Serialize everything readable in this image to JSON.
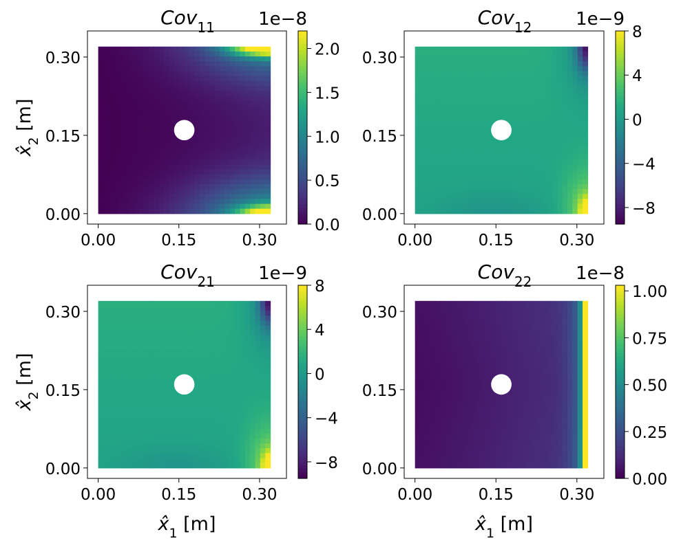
{
  "chart_data": [
    {
      "type": "heatmap",
      "title_main": "Cov",
      "title_sub": "11",
      "xlabel_hat": "x̂",
      "xlabel_sub": "1",
      "xlabel_unit": " [m]",
      "ylabel_hat": "x̂",
      "ylabel_sub": "2",
      "ylabel_unit": " [m]",
      "show_xlabel": false,
      "show_ylabel": true,
      "x_ticks": [
        "0.00",
        "0.15",
        "0.30"
      ],
      "y_ticks": [
        "0.00",
        "0.15",
        "0.30"
      ],
      "xlim": [
        -0.02,
        0.35
      ],
      "ylim": [
        -0.02,
        0.35
      ],
      "domain": {
        "x": [
          0,
          0.32
        ],
        "y": [
          0,
          0.32
        ]
      },
      "hole": {
        "center": [
          0.16,
          0.16
        ],
        "radius": 0.019
      },
      "pattern": "cov11",
      "colormap": "viridis",
      "colorbar": {
        "multiplier": "1e−8",
        "ticks": [
          "0.0",
          "0.5",
          "1.0",
          "1.5",
          "2.0"
        ],
        "tick_values": [
          0.0,
          0.5,
          1.0,
          1.5,
          2.0
        ],
        "range": [
          0.0,
          2.2
        ]
      }
    },
    {
      "type": "heatmap",
      "title_main": "Cov",
      "title_sub": "12",
      "xlabel_hat": "x̂",
      "xlabel_sub": "1",
      "xlabel_unit": " [m]",
      "ylabel_hat": "x̂",
      "ylabel_sub": "2",
      "ylabel_unit": " [m]",
      "show_xlabel": false,
      "show_ylabel": false,
      "x_ticks": [
        "0.00",
        "0.15",
        "0.30"
      ],
      "y_ticks": [
        "0.00",
        "0.15",
        "0.30"
      ],
      "xlim": [
        -0.02,
        0.35
      ],
      "ylim": [
        -0.02,
        0.35
      ],
      "domain": {
        "x": [
          0,
          0.32
        ],
        "y": [
          0,
          0.32
        ]
      },
      "hole": {
        "center": [
          0.16,
          0.16
        ],
        "radius": 0.019
      },
      "pattern": "cov12",
      "colormap": "viridis",
      "colorbar": {
        "multiplier": "1e−9",
        "ticks": [
          "−8",
          "−4",
          "0",
          "4",
          "8"
        ],
        "tick_values": [
          -8,
          -4,
          0,
          4,
          8
        ],
        "range": [
          -9.5,
          8
        ]
      }
    },
    {
      "type": "heatmap",
      "title_main": "Cov",
      "title_sub": "21",
      "xlabel_hat": "x̂",
      "xlabel_sub": "1",
      "xlabel_unit": " [m]",
      "ylabel_hat": "x̂",
      "ylabel_sub": "2",
      "ylabel_unit": " [m]",
      "show_xlabel": true,
      "show_ylabel": true,
      "x_ticks": [
        "0.00",
        "0.15",
        "0.30"
      ],
      "y_ticks": [
        "0.00",
        "0.15",
        "0.30"
      ],
      "xlim": [
        -0.02,
        0.35
      ],
      "ylim": [
        -0.02,
        0.35
      ],
      "domain": {
        "x": [
          0,
          0.32
        ],
        "y": [
          0,
          0.32
        ]
      },
      "hole": {
        "center": [
          0.16,
          0.16
        ],
        "radius": 0.019
      },
      "pattern": "cov12",
      "colormap": "viridis",
      "colorbar": {
        "multiplier": "1e−9",
        "ticks": [
          "−8",
          "−4",
          "0",
          "4",
          "8"
        ],
        "tick_values": [
          -8,
          -4,
          0,
          4,
          8
        ],
        "range": [
          -9.5,
          8
        ]
      }
    },
    {
      "type": "heatmap",
      "title_main": "Cov",
      "title_sub": "22",
      "xlabel_hat": "x̂",
      "xlabel_sub": "1",
      "xlabel_unit": " [m]",
      "ylabel_hat": "x̂",
      "ylabel_sub": "2",
      "ylabel_unit": " [m]",
      "show_xlabel": true,
      "show_ylabel": false,
      "x_ticks": [
        "0.00",
        "0.15",
        "0.30"
      ],
      "y_ticks": [
        "0.00",
        "0.15",
        "0.30"
      ],
      "xlim": [
        -0.02,
        0.35
      ],
      "ylim": [
        -0.02,
        0.35
      ],
      "domain": {
        "x": [
          0,
          0.32
        ],
        "y": [
          0,
          0.32
        ]
      },
      "hole": {
        "center": [
          0.16,
          0.16
        ],
        "radius": 0.019
      },
      "pattern": "cov22",
      "colormap": "viridis",
      "colorbar": {
        "multiplier": "1e−8",
        "ticks": [
          "0.00",
          "0.25",
          "0.50",
          "0.75",
          "1.00"
        ],
        "tick_values": [
          0.0,
          0.25,
          0.5,
          0.75,
          1.0
        ],
        "range": [
          0.0,
          1.03
        ]
      }
    }
  ]
}
